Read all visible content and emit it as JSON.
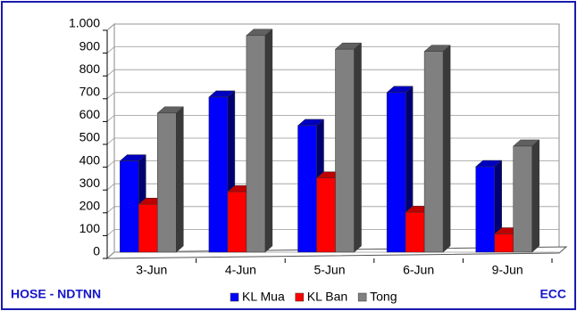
{
  "chart_data": {
    "type": "bar3d",
    "categories": [
      "3-Jun",
      "4-Jun",
      "5-Jun",
      "6-Jun",
      "9-Jun"
    ],
    "series": [
      {
        "name": "KL Mua",
        "color": "#0000ff",
        "values": [
          400,
          680,
          555,
          700,
          375
        ]
      },
      {
        "name": "KL Ban",
        "color": "#ff0000",
        "values": [
          210,
          265,
          325,
          175,
          80
        ]
      },
      {
        "name": "Tong",
        "color": "#808080",
        "values": [
          610,
          950,
          890,
          880,
          465
        ]
      }
    ],
    "ylim": [
      0,
      1000
    ],
    "yticks": [
      0,
      100,
      200,
      300,
      400,
      500,
      600,
      700,
      800,
      900,
      {
        "value": 1000,
        "label": "1.000"
      }
    ],
    "grid": true,
    "legend": "bottom",
    "annotations": [
      "HOSE - NDTNN",
      "ECC"
    ]
  }
}
